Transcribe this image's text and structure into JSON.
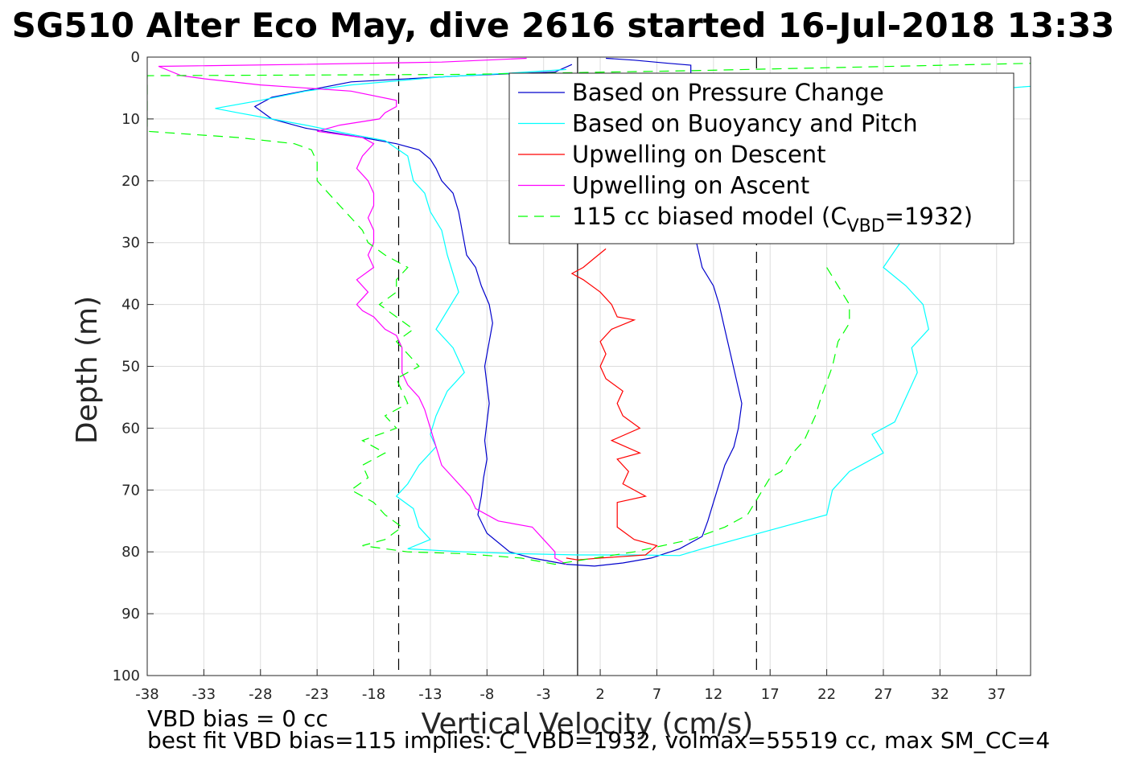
{
  "chart_data": {
    "type": "line",
    "title": "SG510 Alter Eco May, dive 2616 started 16-Jul-2018 13:33",
    "xlabel": "Vertical Velocity (cm/s)",
    "ylabel": "Depth (m)",
    "xlim": [
      -38,
      40
    ],
    "ylim": [
      100,
      0
    ],
    "y_reversed": true,
    "grid": true,
    "legend_position": "top-right",
    "x_ticks": [
      "-38",
      "-33",
      "-28",
      "-23",
      "-18",
      "-13",
      "-8",
      "-3",
      "2",
      "7",
      "12",
      "17",
      "22",
      "27",
      "32",
      "37"
    ],
    "y_ticks": [
      "0",
      "10",
      "20",
      "30",
      "40",
      "50",
      "60",
      "70",
      "80",
      "90",
      "100"
    ],
    "footnotes": [
      "VBD bias = 0 cc",
      "best fit VBD bias=115 implies: C_VBD=1932, volmax=55519 cc, max SM_CC=4"
    ],
    "reference_lines": [
      {
        "x": -15.8,
        "style": "dash",
        "color": "#000000"
      },
      {
        "x": 0,
        "style": "solid",
        "color": "#000000"
      },
      {
        "x": 15.8,
        "style": "dash",
        "color": "#000000"
      }
    ],
    "legend": {
      "model_prefix": "115 cc biased model (C",
      "model_sub": "VBD",
      "model_suffix": "=1932)"
    },
    "series": [
      {
        "name": "Based on Pressure Change",
        "color": "#0000cc",
        "dash": "none",
        "points": [
          [
            -0.5,
            1.2
          ],
          [
            -2,
            2.4
          ],
          [
            -10,
            3
          ],
          [
            -20,
            4
          ],
          [
            -27,
            6.5
          ],
          [
            -28.5,
            8
          ],
          [
            -27,
            10
          ],
          [
            -24,
            11.5
          ],
          [
            -19,
            13
          ],
          [
            -16,
            14
          ],
          [
            -14,
            15
          ],
          [
            -13,
            16.5
          ],
          [
            -12.5,
            18
          ],
          [
            -12,
            20
          ],
          [
            -11,
            22
          ],
          [
            -10.5,
            25
          ],
          [
            -10.2,
            28
          ],
          [
            -9.8,
            32
          ],
          [
            -9,
            34
          ],
          [
            -8.5,
            37
          ],
          [
            -7.8,
            40
          ],
          [
            -7.5,
            43
          ],
          [
            -7.8,
            46
          ],
          [
            -8.2,
            50
          ],
          [
            -8,
            53
          ],
          [
            -7.8,
            56
          ],
          [
            -8,
            59
          ],
          [
            -8.2,
            62
          ],
          [
            -8,
            65
          ],
          [
            -8.3,
            68
          ],
          [
            -8.5,
            71
          ],
          [
            -8.8,
            74
          ],
          [
            -8,
            77
          ],
          [
            -6,
            80
          ],
          [
            -4,
            81
          ],
          [
            -1,
            82
          ],
          [
            1.5,
            82.3
          ],
          [
            4,
            81.8
          ],
          [
            6.5,
            81
          ],
          [
            9,
            79.5
          ],
          [
            11,
            77.5
          ],
          [
            11.5,
            75
          ],
          [
            12,
            72
          ],
          [
            12.5,
            69
          ],
          [
            13,
            66
          ],
          [
            13.8,
            63
          ],
          [
            14.2,
            60
          ],
          [
            14.5,
            56
          ],
          [
            14,
            52
          ],
          [
            13.5,
            48
          ],
          [
            13,
            44
          ],
          [
            12.5,
            40
          ],
          [
            12,
            37
          ],
          [
            11,
            34
          ],
          [
            10.5,
            30
          ],
          [
            10,
            22
          ],
          [
            10,
            10
          ],
          [
            10,
            1.3
          ],
          [
            8,
            1
          ],
          [
            5,
            0.5
          ],
          [
            2.5,
            0.2
          ]
        ]
      },
      {
        "name": "Based on Buoyancy and Pitch",
        "color": "#00ffff",
        "dash": "none",
        "points": [
          [
            -1,
            2
          ],
          [
            -6,
            2.6
          ],
          [
            -12,
            3.2
          ],
          [
            -20,
            4.5
          ],
          [
            -24,
            5.5
          ],
          [
            -28,
            7
          ],
          [
            -32,
            8.3
          ],
          [
            -30,
            9
          ],
          [
            -27,
            10
          ],
          [
            -24,
            11
          ],
          [
            -20,
            12.5
          ],
          [
            -17,
            13.5
          ],
          [
            -15,
            16
          ],
          [
            -14.5,
            20
          ],
          [
            -13.5,
            22
          ],
          [
            -13,
            25
          ],
          [
            -12,
            28
          ],
          [
            -11.5,
            32
          ],
          [
            -11,
            35
          ],
          [
            -10.5,
            38
          ],
          [
            -11.5,
            41
          ],
          [
            -12.5,
            44
          ],
          [
            -11,
            47
          ],
          [
            -10,
            51
          ],
          [
            -11.5,
            54
          ],
          [
            -12.5,
            58
          ],
          [
            -13,
            61
          ],
          [
            -12.5,
            63
          ],
          [
            -14,
            66
          ],
          [
            -15,
            69
          ],
          [
            -16,
            71
          ],
          [
            -14.5,
            73
          ],
          [
            -14,
            76
          ],
          [
            -13,
            78
          ],
          [
            -15,
            79.5
          ],
          [
            -10,
            80
          ],
          [
            -5,
            80.3
          ],
          [
            0,
            80.5
          ],
          [
            5,
            80.5
          ],
          [
            9,
            80.6
          ],
          [
            11,
            79.5
          ],
          [
            14,
            78
          ],
          [
            18,
            76
          ],
          [
            22,
            74
          ],
          [
            22.5,
            70
          ],
          [
            24,
            67
          ],
          [
            27,
            64
          ],
          [
            26,
            61
          ],
          [
            28,
            59
          ],
          [
            29,
            55
          ],
          [
            30,
            51
          ],
          [
            29.5,
            47
          ],
          [
            31,
            44
          ],
          [
            30.5,
            40
          ],
          [
            29,
            37
          ],
          [
            27,
            34
          ],
          [
            28.5,
            30
          ],
          [
            31,
            20
          ],
          [
            38,
            5
          ],
          [
            45,
            4
          ]
        ]
      },
      {
        "name": "Upwelling on Descent",
        "color": "#ff0000",
        "dash": "none",
        "points": [
          [
            2.5,
            31
          ],
          [
            1.5,
            32.5
          ],
          [
            0.5,
            34
          ],
          [
            -0.5,
            35
          ],
          [
            0.5,
            36
          ],
          [
            2,
            38
          ],
          [
            3,
            40
          ],
          [
            3.5,
            42
          ],
          [
            5,
            42.5
          ],
          [
            3,
            44
          ],
          [
            2,
            46
          ],
          [
            2.5,
            48
          ],
          [
            2,
            50
          ],
          [
            2.5,
            52
          ],
          [
            4,
            54
          ],
          [
            3.5,
            56
          ],
          [
            4,
            58
          ],
          [
            5.5,
            60
          ],
          [
            3,
            62
          ],
          [
            5.5,
            64
          ],
          [
            3.5,
            65
          ],
          [
            4.5,
            67
          ],
          [
            4,
            69
          ],
          [
            6,
            71
          ],
          [
            3.5,
            72
          ],
          [
            3.5,
            74
          ],
          [
            3.5,
            76
          ],
          [
            5,
            78
          ],
          [
            7,
            79
          ],
          [
            6,
            80.5
          ],
          [
            2,
            81
          ],
          [
            0,
            81.3
          ],
          [
            -1,
            81
          ]
        ]
      },
      {
        "name": "Upwelling on Ascent",
        "color": "#ff00ff",
        "dash": "none",
        "points": [
          [
            -4.5,
            0.2
          ],
          [
            -12,
            0.8
          ],
          [
            -25,
            1.2
          ],
          [
            -37,
            1.5
          ],
          [
            -35,
            3
          ],
          [
            -33,
            3.5
          ],
          [
            -28,
            4.5
          ],
          [
            -20,
            5.5
          ],
          [
            -16,
            7
          ],
          [
            -16,
            8
          ],
          [
            -17,
            9
          ],
          [
            -17.5,
            10
          ],
          [
            -21,
            11
          ],
          [
            -23,
            12
          ],
          [
            -19,
            13
          ],
          [
            -18,
            14
          ],
          [
            -19,
            16
          ],
          [
            -19.5,
            18
          ],
          [
            -18.5,
            20
          ],
          [
            -18,
            22
          ],
          [
            -18,
            24
          ],
          [
            -18.5,
            26
          ],
          [
            -18,
            28
          ],
          [
            -18,
            30
          ],
          [
            -18.5,
            32
          ],
          [
            -18,
            34
          ],
          [
            -19.5,
            36
          ],
          [
            -18.5,
            38
          ],
          [
            -19.5,
            40
          ],
          [
            -19,
            41
          ],
          [
            -18,
            42
          ],
          [
            -17,
            44
          ],
          [
            -16,
            45
          ],
          [
            -15.5,
            47
          ],
          [
            -15.5,
            51
          ],
          [
            -15,
            53
          ],
          [
            -14,
            55
          ],
          [
            -13.5,
            57
          ],
          [
            -13,
            60
          ],
          [
            -12.5,
            63
          ],
          [
            -12,
            66
          ],
          [
            -11,
            68
          ],
          [
            -9.5,
            71
          ],
          [
            -9,
            73
          ],
          [
            -7,
            75
          ],
          [
            -4,
            76
          ],
          [
            -3,
            78
          ],
          [
            -2,
            80
          ],
          [
            -2,
            81
          ],
          [
            -1,
            82
          ]
        ]
      },
      {
        "name": "115 cc biased model (CVBD=1932)",
        "color": "#00ff00",
        "dash": "12,8",
        "points": [
          [
            45,
            0.8
          ],
          [
            30,
            1.4
          ],
          [
            10,
            2.2
          ],
          [
            -10,
            2.8
          ],
          [
            -38,
            3
          ],
          [
            -38,
            12
          ],
          [
            -30,
            13
          ],
          [
            -25,
            14
          ],
          [
            -23.5,
            15
          ],
          [
            -23,
            17
          ],
          [
            -23,
            20
          ],
          [
            -22,
            22
          ],
          [
            -21,
            24
          ],
          [
            -20,
            26
          ],
          [
            -19,
            28
          ],
          [
            -18.5,
            30
          ],
          [
            -17,
            32
          ],
          [
            -15,
            34
          ],
          [
            -16,
            36
          ],
          [
            -16,
            38
          ],
          [
            -17.5,
            40
          ],
          [
            -16,
            42
          ],
          [
            -14.5,
            44
          ],
          [
            -16,
            46
          ],
          [
            -15,
            48
          ],
          [
            -14,
            50
          ],
          [
            -16,
            52
          ],
          [
            -15.5,
            54
          ],
          [
            -15,
            56
          ],
          [
            -17,
            58
          ],
          [
            -16,
            60
          ],
          [
            -19,
            62
          ],
          [
            -17,
            64
          ],
          [
            -19,
            66
          ],
          [
            -18.5,
            68
          ],
          [
            -20,
            70
          ],
          [
            -18,
            72
          ],
          [
            -17,
            74
          ],
          [
            -15.5,
            76
          ],
          [
            -17,
            78
          ],
          [
            -19,
            79
          ],
          [
            -15,
            80
          ],
          [
            -10,
            80.3
          ],
          [
            -5,
            81
          ],
          [
            -2,
            82
          ],
          [
            5,
            80
          ],
          [
            10,
            78
          ],
          [
            13,
            76
          ],
          [
            15,
            74
          ],
          [
            16,
            71
          ],
          [
            17,
            68
          ],
          [
            18,
            67
          ],
          [
            19,
            64
          ],
          [
            20,
            62
          ],
          [
            21,
            58
          ],
          [
            21.5,
            55
          ],
          [
            22.5,
            50
          ],
          [
            23,
            46
          ],
          [
            24,
            43
          ],
          [
            24,
            40
          ],
          [
            23,
            37
          ],
          [
            22,
            34
          ],
          [
            22,
            33
          ]
        ]
      }
    ]
  }
}
